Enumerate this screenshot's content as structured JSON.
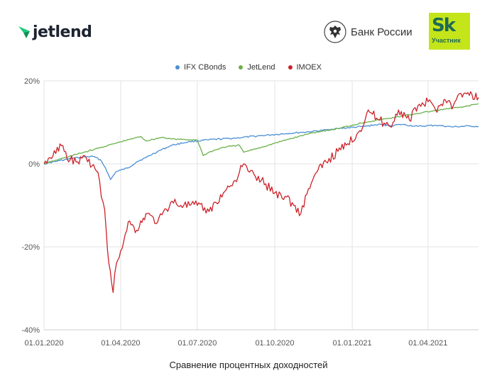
{
  "header": {
    "jetlend_logo_text": "jetlend",
    "cbr_text": "Банк России",
    "sk_big": "Sk",
    "sk_small": "Участник",
    "colors": {
      "jetlend_mark": "#1fc97a",
      "sk_background": "#c5e51b",
      "sk_text": "#1e6b52"
    }
  },
  "chart_data": {
    "type": "line",
    "title": "",
    "xlabel": "Сравнение процентных доходностей",
    "ylabel": "",
    "ylim": [
      -40,
      20
    ],
    "yticks": [
      {
        "value": 20,
        "label": "20%"
      },
      {
        "value": 0,
        "label": "0%"
      },
      {
        "value": -20,
        "label": "-20%"
      },
      {
        "value": -40,
        "label": "-40%"
      }
    ],
    "xlim": [
      "2020-01-01",
      "2021-05-31"
    ],
    "xticks": [
      {
        "date": "2020-01-01",
        "label": "01.01.2020"
      },
      {
        "date": "2020-04-01",
        "label": "01.04.2020"
      },
      {
        "date": "2020-07-01",
        "label": "01.07.2020"
      },
      {
        "date": "2020-10-01",
        "label": "01.10.2020"
      },
      {
        "date": "2021-01-01",
        "label": "01.01.2021"
      },
      {
        "date": "2021-04-01",
        "label": "01.04.2021"
      }
    ],
    "grid": true,
    "legend_position": "top-center",
    "series": [
      {
        "name": "IFX CBonds",
        "color": "#4a8fd4",
        "points": [
          [
            "2020-01-01",
            0
          ],
          [
            "2020-01-20",
            0.8
          ],
          [
            "2020-02-10",
            1.5
          ],
          [
            "2020-02-28",
            1.8
          ],
          [
            "2020-03-08",
            1.0
          ],
          [
            "2020-03-14",
            -1.0
          ],
          [
            "2020-03-20",
            -3.8
          ],
          [
            "2020-03-26",
            -2.0
          ],
          [
            "2020-04-01",
            -1.5
          ],
          [
            "2020-04-10",
            -1.0
          ],
          [
            "2020-04-20",
            0.5
          ],
          [
            "2020-05-01",
            1.5
          ],
          [
            "2020-05-15",
            3.0
          ],
          [
            "2020-06-01",
            4.5
          ],
          [
            "2020-06-20",
            5.3
          ],
          [
            "2020-07-15",
            5.8
          ],
          [
            "2020-08-15",
            6.2
          ],
          [
            "2020-09-15",
            6.8
          ],
          [
            "2020-10-15",
            7.3
          ],
          [
            "2020-11-15",
            7.8
          ],
          [
            "2020-12-15",
            8.5
          ],
          [
            "2021-01-15",
            9.0
          ],
          [
            "2021-02-01",
            9.5
          ],
          [
            "2021-02-15",
            9.2
          ],
          [
            "2021-03-01",
            9.5
          ],
          [
            "2021-03-20",
            9.0
          ],
          [
            "2021-04-10",
            9.3
          ],
          [
            "2021-04-30",
            8.9
          ],
          [
            "2021-05-20",
            9.1
          ],
          [
            "2021-05-31",
            9.0
          ]
        ]
      },
      {
        "name": "JetLend",
        "color": "#6ab04c",
        "points": [
          [
            "2020-01-01",
            0
          ],
          [
            "2020-01-31",
            1.8
          ],
          [
            "2020-03-01",
            3.5
          ],
          [
            "2020-04-01",
            5.3
          ],
          [
            "2020-04-25",
            6.6
          ],
          [
            "2020-05-01",
            5.5
          ],
          [
            "2020-05-20",
            6.4
          ],
          [
            "2020-06-01",
            6.0
          ],
          [
            "2020-06-20",
            5.8
          ],
          [
            "2020-07-01",
            5.8
          ],
          [
            "2020-07-08",
            2.0
          ],
          [
            "2020-07-15",
            2.8
          ],
          [
            "2020-08-01",
            4.0
          ],
          [
            "2020-08-20",
            4.5
          ],
          [
            "2020-08-25",
            2.8
          ],
          [
            "2020-09-15",
            4.0
          ],
          [
            "2020-10-15",
            5.8
          ],
          [
            "2020-11-15",
            7.5
          ],
          [
            "2020-12-15",
            8.5
          ],
          [
            "2021-01-15",
            10.0
          ],
          [
            "2021-02-15",
            11.0
          ],
          [
            "2021-03-15",
            12.0
          ],
          [
            "2021-04-15",
            13.0
          ],
          [
            "2021-05-15",
            13.8
          ],
          [
            "2021-05-31",
            14.5
          ]
        ]
      },
      {
        "name": "IMOEX",
        "color": "#cc2229",
        "points": [
          [
            "2020-01-01",
            0
          ],
          [
            "2020-01-08",
            1.5
          ],
          [
            "2020-01-15",
            2.5
          ],
          [
            "2020-01-20",
            4.8
          ],
          [
            "2020-01-25",
            3.0
          ],
          [
            "2020-02-01",
            1.0
          ],
          [
            "2020-02-10",
            0.5
          ],
          [
            "2020-02-20",
            1.5
          ],
          [
            "2020-02-27",
            -0.5
          ],
          [
            "2020-03-05",
            -2.0
          ],
          [
            "2020-03-09",
            -8.0
          ],
          [
            "2020-03-13",
            -11.0
          ],
          [
            "2020-03-18",
            -24.0
          ],
          [
            "2020-03-23",
            -31.0
          ],
          [
            "2020-03-27",
            -24.0
          ],
          [
            "2020-04-01",
            -21.0
          ],
          [
            "2020-04-10",
            -14.0
          ],
          [
            "2020-04-20",
            -16.0
          ],
          [
            "2020-05-01",
            -12.0
          ],
          [
            "2020-05-15",
            -14.0
          ],
          [
            "2020-06-01",
            -9.0
          ],
          [
            "2020-06-15",
            -10.0
          ],
          [
            "2020-07-01",
            -10.0
          ],
          [
            "2020-07-15",
            -11.5
          ],
          [
            "2020-08-01",
            -7.0
          ],
          [
            "2020-08-15",
            -4.0
          ],
          [
            "2020-08-25",
            0
          ],
          [
            "2020-09-01",
            -2.0
          ],
          [
            "2020-09-15",
            -4.0
          ],
          [
            "2020-10-01",
            -7.0
          ],
          [
            "2020-10-15",
            -8.0
          ],
          [
            "2020-11-01",
            -12.0
          ],
          [
            "2020-11-10",
            -6.0
          ],
          [
            "2020-11-20",
            -2.0
          ],
          [
            "2020-12-01",
            0.5
          ],
          [
            "2020-12-15",
            3.0
          ],
          [
            "2020-12-25",
            4.5
          ],
          [
            "2021-01-10",
            8.0
          ],
          [
            "2021-01-20",
            13.0
          ],
          [
            "2021-01-30",
            11.0
          ],
          [
            "2021-02-15",
            9.0
          ],
          [
            "2021-02-25",
            13.0
          ],
          [
            "2021-03-10",
            10.5
          ],
          [
            "2021-03-20",
            14.0
          ],
          [
            "2021-04-01",
            15.0
          ],
          [
            "2021-04-10",
            13.0
          ],
          [
            "2021-04-20",
            15.5
          ],
          [
            "2021-05-01",
            14.0
          ],
          [
            "2021-05-10",
            17.0
          ],
          [
            "2021-05-20",
            16.5
          ],
          [
            "2021-05-31",
            16.0
          ]
        ]
      }
    ]
  }
}
